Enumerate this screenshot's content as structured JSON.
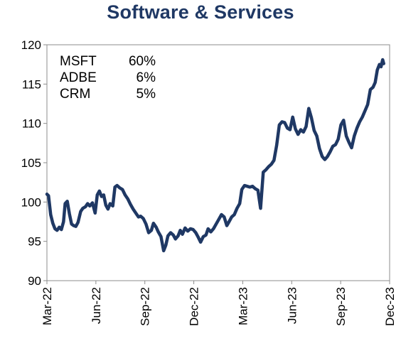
{
  "chart_data": {
    "type": "line",
    "title": "Software & Services",
    "xlabel": "",
    "ylabel": "",
    "ylim": [
      90,
      120
    ],
    "yticks": [
      90,
      95,
      100,
      105,
      110,
      115,
      120
    ],
    "xticks": [
      "Mar-22",
      "Jun-22",
      "Sep-22",
      "Dec-22",
      "Mar-23",
      "Jun-23",
      "Sep-23",
      "Dec-23"
    ],
    "grid": false,
    "line_color": "#1f3864",
    "annotations": [
      {
        "ticker": "MSFT",
        "weight": "60%"
      },
      {
        "ticker": "ADBE",
        "weight": "6%"
      },
      {
        "ticker": "CRM",
        "weight": "5%"
      }
    ],
    "series": [
      {
        "x": [
          "2022-03-01",
          "2022-03-04",
          "2022-03-08",
          "2022-03-12",
          "2022-03-16",
          "2022-03-20",
          "2022-03-24",
          "2022-03-28",
          "2022-04-01",
          "2022-04-04",
          "2022-04-08",
          "2022-04-12",
          "2022-04-16",
          "2022-04-20",
          "2022-04-24",
          "2022-04-28",
          "2022-05-03",
          "2022-05-07",
          "2022-05-12",
          "2022-05-16",
          "2022-05-20",
          "2022-05-25",
          "2022-05-30",
          "2022-06-03",
          "2022-06-07",
          "2022-06-11",
          "2022-06-15",
          "2022-06-19",
          "2022-06-23",
          "2022-06-27",
          "2022-07-02",
          "2022-07-06",
          "2022-07-10",
          "2022-07-15",
          "2022-07-20",
          "2022-07-25",
          "2022-07-30",
          "2022-08-04",
          "2022-08-09",
          "2022-08-14",
          "2022-08-19",
          "2022-08-23",
          "2022-08-28",
          "2022-09-02",
          "2022-09-07",
          "2022-09-12",
          "2022-09-16",
          "2022-09-21",
          "2022-09-25",
          "2022-09-30",
          "2022-10-05",
          "2022-10-09",
          "2022-10-13",
          "2022-10-18",
          "2022-10-23",
          "2022-10-27",
          "2022-11-01",
          "2022-11-05",
          "2022-11-09",
          "2022-11-14",
          "2022-11-19",
          "2022-11-24",
          "2022-11-29",
          "2022-12-04",
          "2022-12-08",
          "2022-12-13",
          "2022-12-18",
          "2022-12-23",
          "2022-12-27",
          "2023-01-01",
          "2023-01-06",
          "2023-01-11",
          "2023-01-16",
          "2023-01-21",
          "2023-01-26",
          "2023-01-31",
          "2023-02-05",
          "2023-02-09",
          "2023-02-14",
          "2023-02-19",
          "2023-02-24",
          "2023-02-28",
          "2023-03-05",
          "2023-03-10",
          "2023-03-15",
          "2023-03-20",
          "2023-03-25",
          "2023-03-30",
          "2023-04-04",
          "2023-04-09",
          "2023-04-14",
          "2023-04-19",
          "2023-04-24",
          "2023-04-29",
          "2023-05-04",
          "2023-05-09",
          "2023-05-14",
          "2023-05-19",
          "2023-05-24",
          "2023-05-29",
          "2023-06-03",
          "2023-06-08",
          "2023-06-13",
          "2023-06-18",
          "2023-06-23",
          "2023-06-28",
          "2023-07-03",
          "2023-07-08",
          "2023-07-13",
          "2023-07-18",
          "2023-07-23",
          "2023-07-28",
          "2023-08-02",
          "2023-08-07",
          "2023-08-12",
          "2023-08-17",
          "2023-08-22",
          "2023-08-27",
          "2023-09-01",
          "2023-09-06",
          "2023-09-11",
          "2023-09-16",
          "2023-09-21",
          "2023-09-26",
          "2023-10-01",
          "2023-10-06",
          "2023-10-11",
          "2023-10-16",
          "2023-10-21",
          "2023-10-26",
          "2023-10-31",
          "2023-11-04",
          "2023-11-08",
          "2023-11-12",
          "2023-11-15",
          "2023-11-18",
          "2023-11-20"
        ],
        "values": [
          101.0,
          100.8,
          98.4,
          97.3,
          96.6,
          96.4,
          96.8,
          96.5,
          97.5,
          99.8,
          100.1,
          98.5,
          97.2,
          97.0,
          96.9,
          97.4,
          98.8,
          99.2,
          99.4,
          99.8,
          99.5,
          99.9,
          98.6,
          100.9,
          101.4,
          100.7,
          100.9,
          99.6,
          99.1,
          99.8,
          99.5,
          101.9,
          102.1,
          101.8,
          101.6,
          100.9,
          100.4,
          99.7,
          99.1,
          98.6,
          98.1,
          98.2,
          97.9,
          97.2,
          96.1,
          96.4,
          97.3,
          96.8,
          96.2,
          95.6,
          93.8,
          94.5,
          95.7,
          96.1,
          95.8,
          95.3,
          95.7,
          96.4,
          95.9,
          96.7,
          96.3,
          96.6,
          96.5,
          96.1,
          95.6,
          94.9,
          95.6,
          95.8,
          96.6,
          96.2,
          96.6,
          97.2,
          97.8,
          98.4,
          98.1,
          97.0,
          97.6,
          98.1,
          98.4,
          99.2,
          99.8,
          101.6,
          102.1,
          102.0,
          101.9,
          102.0,
          101.7,
          101.5,
          99.2,
          103.8,
          104.1,
          104.5,
          104.8,
          105.3,
          107.2,
          109.8,
          110.2,
          110.1,
          109.4,
          109.2,
          110.8,
          109.3,
          108.6,
          109.2,
          108.9,
          109.6,
          111.9,
          110.7,
          109.1,
          108.4,
          106.8,
          105.8,
          105.4,
          105.8,
          106.4,
          107.1,
          107.3,
          108.0,
          109.8,
          110.4,
          108.4,
          107.6,
          106.9,
          108.4,
          109.4,
          110.2,
          110.8,
          111.6,
          112.4,
          114.3,
          114.6,
          115.2,
          116.8,
          117.5,
          117.2,
          118.1,
          117.6
        ]
      }
    ]
  }
}
